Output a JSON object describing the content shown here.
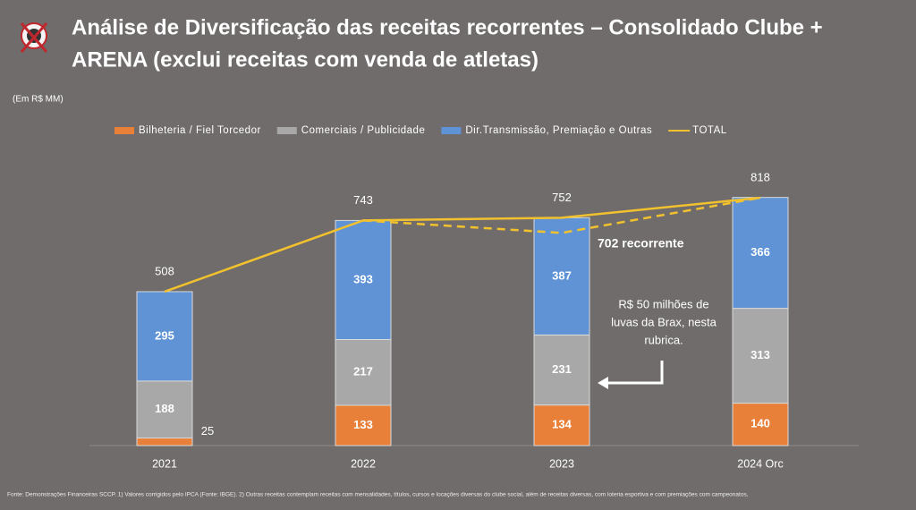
{
  "chart_data": {
    "type": "stacked-bar-line",
    "title_lines": [
      "Análise de Diversificação das receitas recorrentes – Consolidado Clube +",
      "ARENA (exclui receitas com venda de atletas)"
    ],
    "unit_note": "(Em R$ MM)",
    "categories": [
      "2021",
      "2022",
      "2023",
      "2024 Orc"
    ],
    "series": [
      {
        "name": "Bilheteria / Fiel Torcedor",
        "color": "#e8803a",
        "values": [
          25,
          133,
          134,
          140
        ]
      },
      {
        "name": "Comerciais / Publicidade",
        "color": "#a8a8a8",
        "values": [
          188,
          217,
          231,
          313
        ]
      },
      {
        "name": "Dir.Transmissão, Premiação e Outras",
        "color": "#5f93d6",
        "values": [
          295,
          393,
          387,
          366
        ]
      },
      {
        "name": "TOTAL",
        "type": "line",
        "color": "#f2c12e",
        "values": [
          508,
          743,
          752,
          818
        ]
      }
    ],
    "recurrent_line": {
      "label": "702 recorrente",
      "color": "#f2c12e",
      "values": [
        null,
        743,
        702,
        818
      ]
    },
    "annotation_lines": [
      "R$ 50 milhões de",
      "luvas da Brax, nesta",
      "rubrica."
    ],
    "footnote": "Fonte: Demonstrações Financeiras SCCP. 1) Valores corrigidos pelo IPCA (Fonte: IBGE). 2) Outras receitas contemplam receitas com mensalidades, títulos, cursos e locações diversas do clube social, além de receitas diversas, com loteria esportiva e com premiações com campeonatos,"
  }
}
